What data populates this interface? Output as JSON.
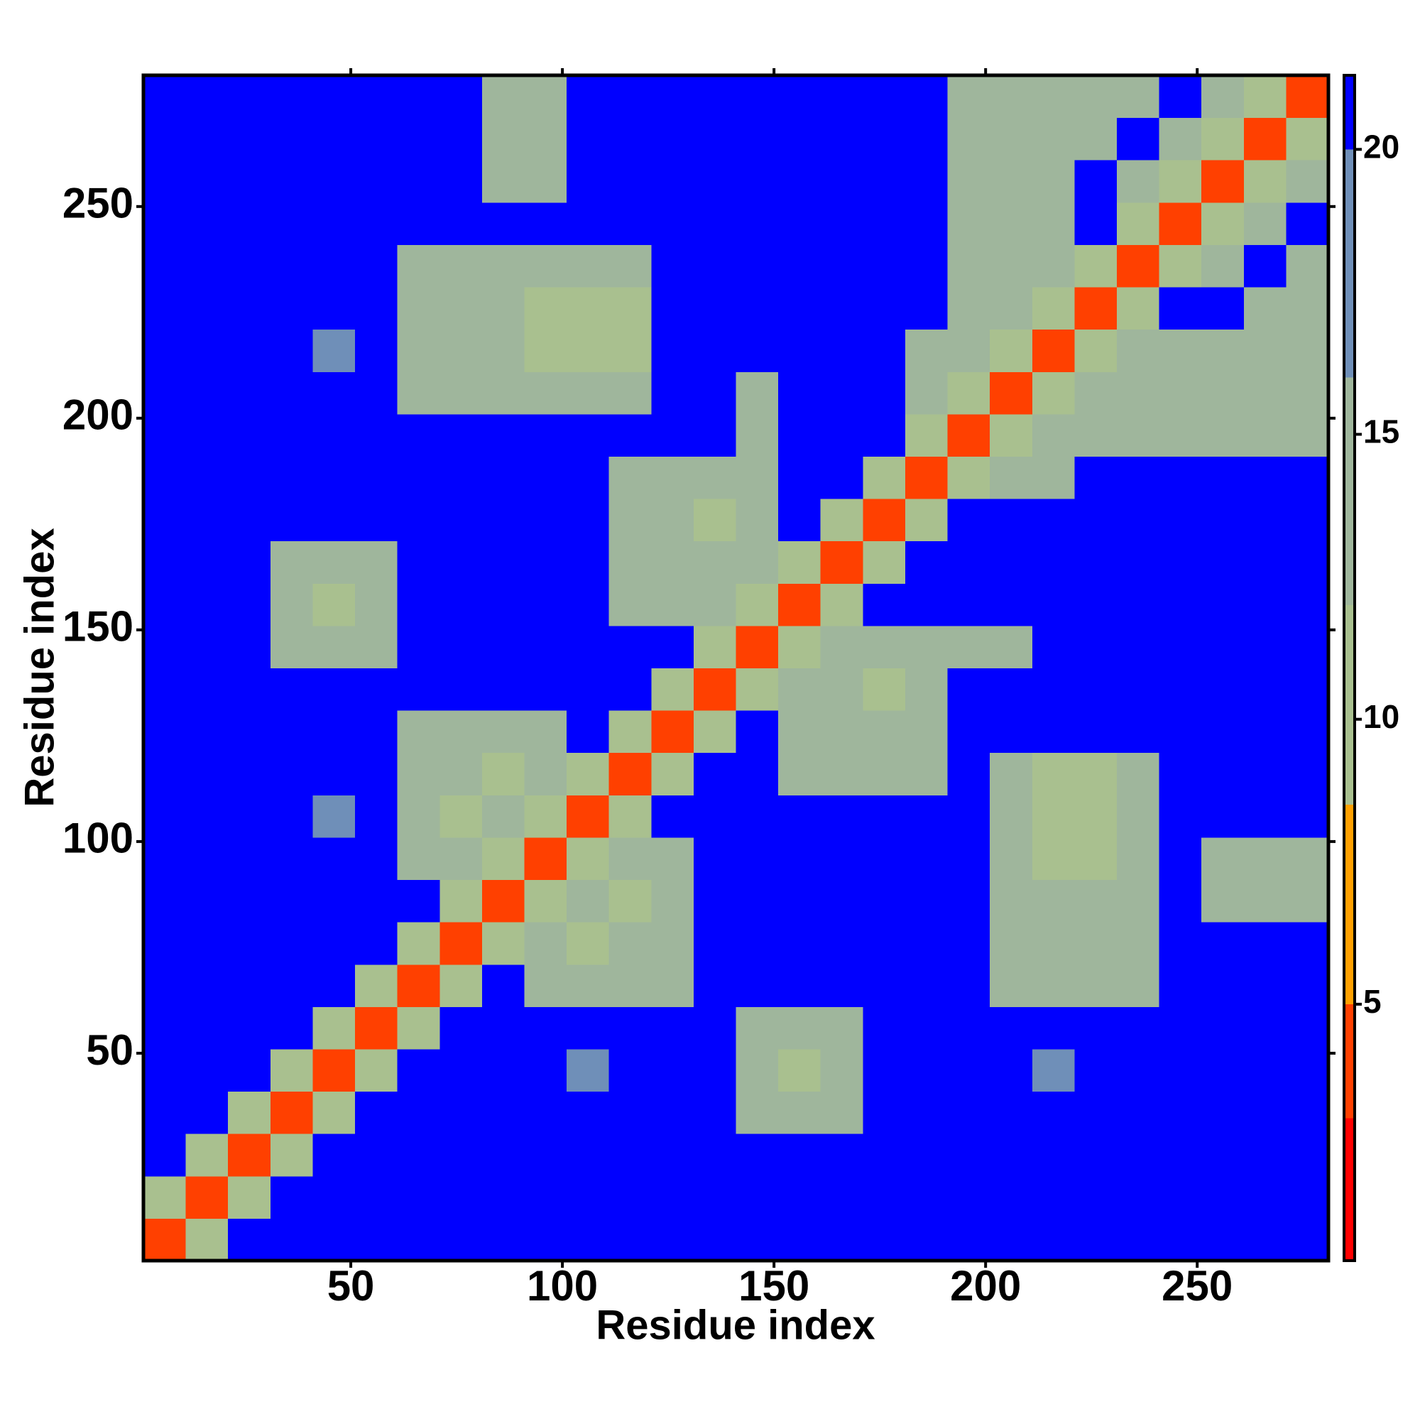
{
  "chart_data": {
    "type": "heatmap",
    "xlabel": "Residue index",
    "ylabel": "Residue index",
    "xlim": [
      1,
      281
    ],
    "ylim": [
      1,
      281
    ],
    "xticks": [
      50,
      100,
      150,
      200,
      250
    ],
    "yticks": [
      50,
      100,
      150,
      200,
      250
    ],
    "x_bins": [
      1,
      11,
      21,
      31,
      41,
      51,
      61,
      71,
      81,
      91,
      101,
      111,
      121,
      131,
      141,
      151,
      161,
      171,
      181,
      191,
      201,
      211,
      221,
      231,
      241,
      251,
      261,
      271,
      281
    ],
    "y_bins": [
      1,
      11,
      21,
      31,
      41,
      51,
      61,
      71,
      81,
      91,
      101,
      111,
      121,
      131,
      141,
      151,
      161,
      171,
      181,
      191,
      201,
      211,
      221,
      231,
      241,
      251,
      261,
      271,
      281
    ],
    "zlim": [
      0.5,
      21.3
    ],
    "zticks": [
      5,
      10,
      15,
      20
    ],
    "colorscale": {
      "bounds": [
        0.5,
        3,
        5,
        8.5,
        12,
        16,
        20,
        21.3
      ],
      "colors": [
        "#ff0000",
        "#ff4000",
        "#ffa000",
        "#a9c08f",
        "#9fb69c",
        "#6f8fb8",
        "#0000ff"
      ]
    },
    "z": [
      [
        4,
        11,
        21,
        21,
        21,
        21,
        21,
        21,
        21,
        21,
        21,
        21,
        21,
        21,
        21,
        21,
        21,
        21,
        21,
        21,
        21,
        21,
        21,
        21,
        21,
        21,
        21,
        21
      ],
      [
        11,
        4,
        11,
        21,
        21,
        21,
        21,
        21,
        21,
        21,
        21,
        21,
        21,
        21,
        21,
        21,
        21,
        21,
        21,
        21,
        21,
        21,
        21,
        21,
        21,
        21,
        21,
        21
      ],
      [
        21,
        11,
        4,
        11,
        21,
        21,
        21,
        21,
        21,
        21,
        21,
        21,
        21,
        21,
        21,
        21,
        21,
        21,
        21,
        21,
        21,
        21,
        21,
        21,
        21,
        21,
        21,
        21
      ],
      [
        21,
        21,
        11,
        4,
        11,
        21,
        21,
        21,
        21,
        21,
        21,
        21,
        21,
        21,
        16,
        16,
        16,
        21,
        21,
        21,
        21,
        21,
        21,
        21,
        21,
        21,
        21,
        21
      ],
      [
        21,
        21,
        21,
        11,
        4,
        11,
        21,
        21,
        21,
        21,
        17,
        21,
        21,
        21,
        16,
        11,
        16,
        21,
        21,
        21,
        21,
        17,
        21,
        21,
        21,
        21,
        21,
        21
      ],
      [
        21,
        21,
        21,
        21,
        11,
        4,
        11,
        21,
        21,
        21,
        21,
        21,
        21,
        21,
        16,
        16,
        16,
        21,
        21,
        21,
        21,
        21,
        21,
        21,
        21,
        21,
        21,
        21
      ],
      [
        21,
        21,
        21,
        21,
        21,
        11,
        4,
        11,
        21,
        13,
        13,
        13,
        13,
        21,
        21,
        21,
        21,
        21,
        21,
        21,
        16,
        16,
        16,
        16,
        21,
        21,
        21,
        21
      ],
      [
        21,
        21,
        21,
        21,
        21,
        21,
        11,
        4,
        11,
        13,
        12,
        13,
        13,
        21,
        21,
        21,
        21,
        21,
        21,
        21,
        16,
        16,
        16,
        16,
        21,
        21,
        21,
        21
      ],
      [
        21,
        21,
        21,
        21,
        21,
        21,
        21,
        11,
        4,
        11,
        13,
        12,
        13,
        21,
        21,
        21,
        21,
        21,
        21,
        21,
        16,
        16,
        16,
        16,
        21,
        16,
        16,
        16
      ],
      [
        21,
        21,
        21,
        21,
        21,
        21,
        13,
        13,
        11,
        4,
        11,
        13,
        13,
        21,
        21,
        21,
        21,
        21,
        21,
        21,
        16,
        12,
        12,
        16,
        21,
        16,
        16,
        16
      ],
      [
        21,
        21,
        21,
        21,
        17,
        21,
        13,
        12,
        13,
        11,
        4,
        11,
        21,
        21,
        21,
        21,
        21,
        21,
        21,
        21,
        16,
        12,
        12,
        16,
        21,
        21,
        21,
        21
      ],
      [
        21,
        21,
        21,
        21,
        21,
        21,
        13,
        13,
        12,
        13,
        11,
        4,
        11,
        21,
        21,
        13,
        13,
        13,
        13,
        21,
        16,
        12,
        12,
        16,
        21,
        21,
        21,
        21
      ],
      [
        21,
        21,
        21,
        21,
        21,
        21,
        13,
        13,
        13,
        13,
        21,
        11,
        4,
        11,
        21,
        13,
        13,
        13,
        13,
        21,
        21,
        21,
        21,
        21,
        21,
        21,
        21,
        21
      ],
      [
        21,
        21,
        21,
        21,
        21,
        21,
        21,
        21,
        21,
        21,
        21,
        21,
        11,
        4,
        11,
        13,
        13,
        12,
        13,
        21,
        21,
        21,
        21,
        21,
        21,
        21,
        21,
        21
      ],
      [
        21,
        21,
        21,
        16,
        16,
        16,
        21,
        21,
        21,
        21,
        21,
        21,
        21,
        11,
        4,
        11,
        13,
        13,
        13,
        16,
        16,
        21,
        21,
        21,
        21,
        21,
        21,
        21
      ],
      [
        21,
        21,
        21,
        16,
        11,
        16,
        21,
        21,
        21,
        21,
        21,
        13,
        13,
        13,
        11,
        4,
        11,
        21,
        21,
        21,
        21,
        21,
        21,
        21,
        21,
        21,
        21,
        21
      ],
      [
        21,
        21,
        21,
        16,
        16,
        16,
        21,
        21,
        21,
        21,
        21,
        13,
        13,
        13,
        13,
        11,
        4,
        11,
        21,
        21,
        21,
        21,
        21,
        21,
        21,
        21,
        21,
        21
      ],
      [
        21,
        21,
        21,
        21,
        21,
        21,
        21,
        21,
        21,
        21,
        21,
        13,
        13,
        12,
        13,
        21,
        11,
        4,
        11,
        21,
        21,
        21,
        21,
        21,
        21,
        21,
        21,
        21
      ],
      [
        21,
        21,
        21,
        21,
        21,
        21,
        21,
        21,
        21,
        21,
        21,
        13,
        13,
        13,
        13,
        21,
        21,
        11,
        4,
        11,
        14,
        13,
        21,
        21,
        21,
        21,
        21,
        21
      ],
      [
        21,
        21,
        21,
        21,
        21,
        21,
        21,
        21,
        21,
        21,
        21,
        21,
        21,
        21,
        16,
        21,
        21,
        21,
        11,
        4,
        11,
        14,
        13,
        16,
        13,
        13,
        13,
        13
      ],
      [
        21,
        21,
        21,
        21,
        21,
        21,
        16,
        16,
        16,
        16,
        16,
        16,
        21,
        21,
        16,
        21,
        21,
        21,
        14,
        11,
        4,
        11,
        14,
        13,
        13,
        13,
        13,
        13
      ],
      [
        21,
        21,
        21,
        21,
        17,
        21,
        16,
        16,
        16,
        12,
        12,
        12,
        21,
        21,
        21,
        21,
        21,
        21,
        13,
        14,
        11,
        4,
        11,
        14,
        13,
        13,
        13,
        13
      ],
      [
        21,
        21,
        21,
        21,
        21,
        21,
        16,
        16,
        16,
        12,
        12,
        12,
        21,
        21,
        21,
        21,
        21,
        21,
        21,
        13,
        14,
        11,
        4,
        11,
        21,
        21,
        14,
        14
      ],
      [
        21,
        21,
        21,
        21,
        21,
        21,
        16,
        16,
        16,
        16,
        16,
        16,
        21,
        21,
        21,
        21,
        21,
        21,
        21,
        16,
        13,
        14,
        11,
        4,
        11,
        14,
        21,
        14
      ],
      [
        21,
        21,
        21,
        21,
        21,
        21,
        21,
        21,
        21,
        21,
        21,
        21,
        21,
        21,
        21,
        21,
        21,
        21,
        21,
        13,
        13,
        13,
        21,
        11,
        4,
        11,
        14,
        21
      ],
      [
        21,
        21,
        21,
        21,
        21,
        21,
        21,
        21,
        16,
        16,
        21,
        21,
        21,
        21,
        21,
        21,
        21,
        21,
        21,
        13,
        13,
        13,
        21,
        14,
        11,
        4,
        11,
        14
      ],
      [
        21,
        21,
        21,
        21,
        21,
        21,
        21,
        21,
        16,
        16,
        21,
        21,
        21,
        21,
        21,
        21,
        21,
        21,
        21,
        13,
        13,
        13,
        14,
        21,
        14,
        11,
        4,
        11
      ],
      [
        21,
        21,
        21,
        21,
        21,
        21,
        21,
        21,
        16,
        16,
        21,
        21,
        21,
        21,
        21,
        21,
        21,
        21,
        21,
        13,
        13,
        13,
        14,
        14,
        21,
        14,
        11,
        4
      ]
    ]
  }
}
